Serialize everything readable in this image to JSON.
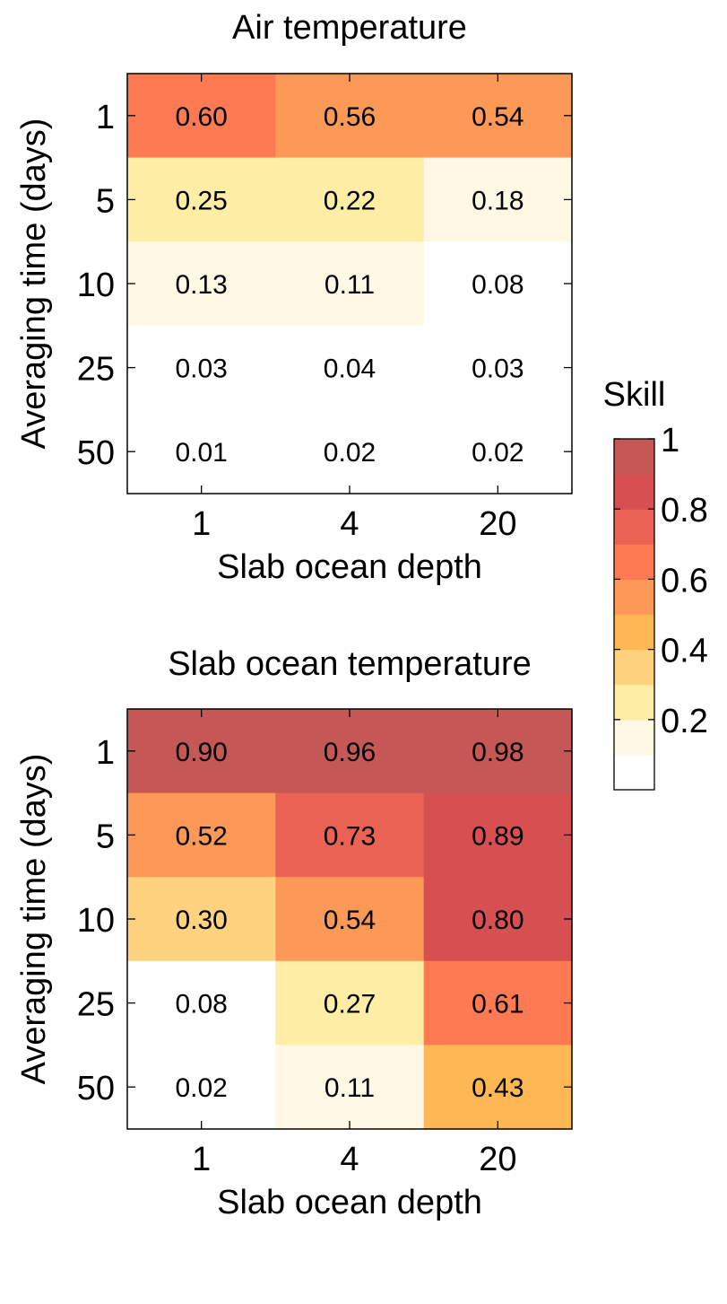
{
  "chart_data": [
    {
      "type": "heatmap",
      "title": "Air temperature",
      "xlabel": "Slab ocean depth",
      "ylabel": "Averaging time (days)",
      "x_categories": [
        "1",
        "4",
        "20"
      ],
      "y_categories": [
        "1",
        "5",
        "10",
        "25",
        "50"
      ],
      "values": [
        [
          "0.60",
          "0.56",
          "0.54"
        ],
        [
          "0.25",
          "0.22",
          "0.18"
        ],
        [
          "0.13",
          "0.11",
          "0.08"
        ],
        [
          "0.03",
          "0.04",
          "0.03"
        ],
        [
          "0.01",
          "0.02",
          "0.02"
        ]
      ]
    },
    {
      "type": "heatmap",
      "title": "Slab ocean temperature",
      "xlabel": "Slab ocean depth",
      "ylabel": "Averaging time (days)",
      "x_categories": [
        "1",
        "4",
        "20"
      ],
      "y_categories": [
        "1",
        "5",
        "10",
        "25",
        "50"
      ],
      "values": [
        [
          "0.90",
          "0.96",
          "0.98"
        ],
        [
          "0.52",
          "0.73",
          "0.89"
        ],
        [
          "0.30",
          "0.54",
          "0.80"
        ],
        [
          "0.08",
          "0.27",
          "0.61"
        ],
        [
          "0.02",
          "0.11",
          "0.43"
        ]
      ]
    }
  ],
  "colorbar": {
    "label": "Skill",
    "range": [
      0,
      1
    ],
    "tick_labels": [
      "1",
      "0.8",
      "0.6",
      "0.4",
      "0.2"
    ],
    "tick_values": [
      1,
      0.8,
      0.6,
      0.4,
      0.2
    ],
    "bins": 10,
    "colors": [
      "#ffffff",
      "#fff8e4",
      "#feeda4",
      "#fed27e",
      "#fdb854",
      "#fd9956",
      "#fd7a52",
      "#ea6253",
      "#d65052",
      "#c55757"
    ]
  }
}
